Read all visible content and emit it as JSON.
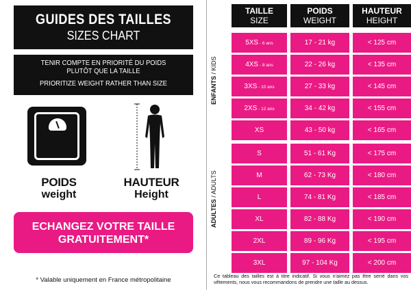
{
  "left": {
    "title_main": "GUIDES DES TAILLES",
    "title_sub": "SIZES CHART",
    "note_fr_line1": "TENIR COMPTE EN PRIORITÉ DU POIDS",
    "note_fr_line2": "PLUTÔT QUE LA TAILLE",
    "note_en": "PRIORITIZE WEIGHT RATHER THAN SIZE",
    "scale_icon": "scale-icon",
    "human_icon": "human-silhouette-icon",
    "poids": "POIDS",
    "weight": "weight",
    "hauteur": "HAUTEUR",
    "height": "Height",
    "exchange_line1": "ECHANGEZ VOTRE TAILLE",
    "exchange_line2": "GRATUITEMENT*",
    "footnote": "* Valable uniquement en France métropolitaine"
  },
  "table": {
    "headers": [
      {
        "fr": "TAILLE",
        "en": "SIZE"
      },
      {
        "fr": "POIDS",
        "en": "WEIGHT"
      },
      {
        "fr": "HAUTEUR",
        "en": "HEIGHT"
      }
    ],
    "kids_label_fr": "ENFANTS",
    "kids_label_en": "KIDS",
    "adults_label_fr": "ADULTES",
    "adults_label_en": "ADULTS",
    "rows": [
      {
        "size": "5XS",
        "age": "- 6 ans",
        "weight": "17 - 21 kg",
        "height": "< 125 cm"
      },
      {
        "size": "4XS",
        "age": "- 8 ans",
        "weight": "22 - 26 kg",
        "height": "< 135 cm"
      },
      {
        "size": "3XS",
        "age": "- 10 ans",
        "weight": "27 - 33 kg",
        "height": "< 145 cm"
      },
      {
        "size": "2XS",
        "age": "- 12 ans",
        "weight": "34 - 42 kg",
        "height": "< 155 cm"
      },
      {
        "size": "XS",
        "age": "",
        "weight": "43 - 50 kg",
        "height": "< 165 cm"
      },
      {
        "size": "S",
        "age": "",
        "weight": "51 - 61 Kg",
        "height": "< 175 cm"
      },
      {
        "size": "M",
        "age": "",
        "weight": "62 - 73 Kg",
        "height": "< 180 cm"
      },
      {
        "size": "L",
        "age": "",
        "weight": "74 - 81 Kg",
        "height": "< 185 cm"
      },
      {
        "size": "XL",
        "age": "",
        "weight": "82 - 88 Kg",
        "height": "< 190 cm"
      },
      {
        "size": "2XL",
        "age": "",
        "weight": "89 - 96 Kg",
        "height": "< 195 cm"
      },
      {
        "size": "3XL",
        "age": "",
        "weight": "97 - 104 Kg",
        "height": "< 200 cm"
      }
    ],
    "footnote": "Ce tableau des tailles est à titre indicatif. Si vous n'aimez pas être serré dans vos vêtements, nous vous recommandons de prendre une taille au dessus."
  },
  "colors": {
    "accent": "#ea1a84",
    "dark": "#111111"
  }
}
